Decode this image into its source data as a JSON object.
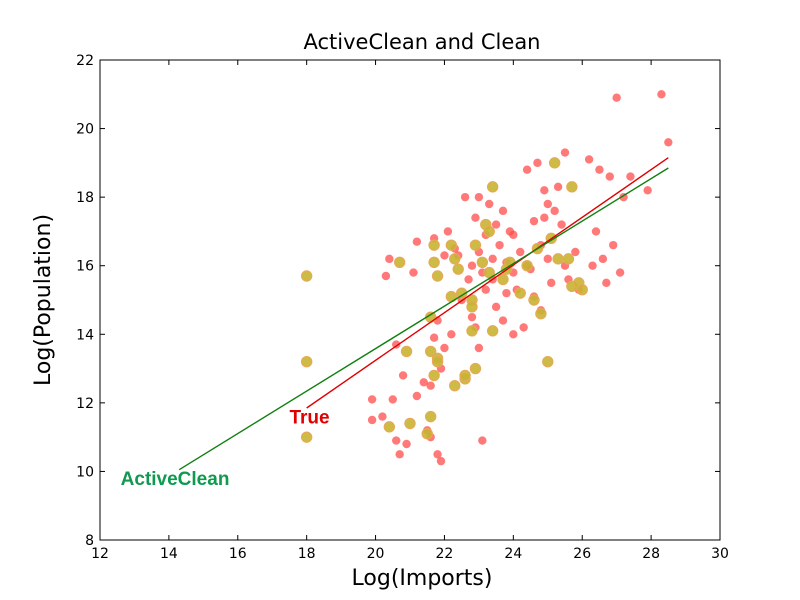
{
  "chart_data": {
    "type": "scatter",
    "title": "ActiveClean and Clean",
    "xlabel": "Log(Imports)",
    "ylabel": "Log(Population)",
    "xlim": [
      12,
      30
    ],
    "ylim": [
      8,
      22
    ],
    "xticks": [
      "12",
      "14",
      "16",
      "18",
      "20",
      "22",
      "24",
      "26",
      "28",
      "30"
    ],
    "yticks": [
      "8",
      "10",
      "12",
      "14",
      "16",
      "18",
      "20",
      "22"
    ],
    "grid": false,
    "colors": {
      "points_red": "#ff4c4c",
      "points_olive": "#c8b432",
      "line_true": "#e00000",
      "line_activeclean": "#108010",
      "label_true": "#e00000",
      "label_activeclean": "#109a50"
    },
    "series": [
      {
        "kind": "points-red",
        "points": [
          [
            19.9,
            12.1
          ],
          [
            19.9,
            11.5
          ],
          [
            20.2,
            11.6
          ],
          [
            20.3,
            15.7
          ],
          [
            20.4,
            16.2
          ],
          [
            20.5,
            12.1
          ],
          [
            20.6,
            13.7
          ],
          [
            20.6,
            10.9
          ],
          [
            20.7,
            10.5
          ],
          [
            20.8,
            12.8
          ],
          [
            20.9,
            10.8
          ],
          [
            21.1,
            15.8
          ],
          [
            21.2,
            16.7
          ],
          [
            21.2,
            12.2
          ],
          [
            21.4,
            12.6
          ],
          [
            21.5,
            11.2
          ],
          [
            21.6,
            11.0
          ],
          [
            21.6,
            12.5
          ],
          [
            21.7,
            16.8
          ],
          [
            21.7,
            13.9
          ],
          [
            21.8,
            14.4
          ],
          [
            21.8,
            10.5
          ],
          [
            21.9,
            10.3
          ],
          [
            21.9,
            13.0
          ],
          [
            22.0,
            16.3
          ],
          [
            22.0,
            13.6
          ],
          [
            22.1,
            17.0
          ],
          [
            22.2,
            14.0
          ],
          [
            22.3,
            16.5
          ],
          [
            22.4,
            16.3
          ],
          [
            22.5,
            15.0
          ],
          [
            22.6,
            18.0
          ],
          [
            22.7,
            15.6
          ],
          [
            22.8,
            16.0
          ],
          [
            22.8,
            14.5
          ],
          [
            22.9,
            17.4
          ],
          [
            22.9,
            14.2
          ],
          [
            23.0,
            18.0
          ],
          [
            23.0,
            16.4
          ],
          [
            23.0,
            13.6
          ],
          [
            23.1,
            15.8
          ],
          [
            23.1,
            10.9
          ],
          [
            23.2,
            16.9
          ],
          [
            23.2,
            15.3
          ],
          [
            23.3,
            17.8
          ],
          [
            23.4,
            16.2
          ],
          [
            23.4,
            15.6
          ],
          [
            23.5,
            17.2
          ],
          [
            23.5,
            14.8
          ],
          [
            23.6,
            16.6
          ],
          [
            23.7,
            17.6
          ],
          [
            23.7,
            14.4
          ],
          [
            23.8,
            16.1
          ],
          [
            23.8,
            15.2
          ],
          [
            23.9,
            17.0
          ],
          [
            24.0,
            16.9
          ],
          [
            24.0,
            15.8
          ],
          [
            24.0,
            14.0
          ],
          [
            24.1,
            15.3
          ],
          [
            24.2,
            16.4
          ],
          [
            24.3,
            14.2
          ],
          [
            24.4,
            18.8
          ],
          [
            24.4,
            16.0
          ],
          [
            24.5,
            15.9
          ],
          [
            24.6,
            17.3
          ],
          [
            24.6,
            15.1
          ],
          [
            24.7,
            19.0
          ],
          [
            24.8,
            16.6
          ],
          [
            24.8,
            14.7
          ],
          [
            24.9,
            18.2
          ],
          [
            24.9,
            17.4
          ],
          [
            25.0,
            17.8
          ],
          [
            25.0,
            16.2
          ],
          [
            25.1,
            15.5
          ],
          [
            25.2,
            17.6
          ],
          [
            25.3,
            18.3
          ],
          [
            25.4,
            17.2
          ],
          [
            25.5,
            19.3
          ],
          [
            25.5,
            16.0
          ],
          [
            25.6,
            15.6
          ],
          [
            25.8,
            16.4
          ],
          [
            25.9,
            15.3
          ],
          [
            26.2,
            19.1
          ],
          [
            26.3,
            16.0
          ],
          [
            26.4,
            17.0
          ],
          [
            26.5,
            18.8
          ],
          [
            26.6,
            16.2
          ],
          [
            26.7,
            15.5
          ],
          [
            26.8,
            18.6
          ],
          [
            26.9,
            16.6
          ],
          [
            27.0,
            20.9
          ],
          [
            27.1,
            15.8
          ],
          [
            27.2,
            18.0
          ],
          [
            27.4,
            18.6
          ],
          [
            27.9,
            18.2
          ],
          [
            28.3,
            21.0
          ],
          [
            28.5,
            19.6
          ]
        ]
      },
      {
        "kind": "points-olive",
        "points": [
          [
            18.0,
            15.7
          ],
          [
            18.0,
            13.2
          ],
          [
            18.0,
            11.0
          ],
          [
            20.4,
            11.3
          ],
          [
            20.7,
            16.1
          ],
          [
            20.9,
            13.5
          ],
          [
            21.0,
            11.4
          ],
          [
            21.5,
            11.1
          ],
          [
            21.6,
            14.5
          ],
          [
            21.6,
            13.5
          ],
          [
            21.6,
            11.6
          ],
          [
            21.7,
            16.6
          ],
          [
            21.7,
            16.1
          ],
          [
            21.7,
            12.8
          ],
          [
            21.8,
            15.7
          ],
          [
            21.8,
            13.3
          ],
          [
            21.8,
            13.2
          ],
          [
            22.2,
            16.6
          ],
          [
            22.2,
            15.1
          ],
          [
            22.3,
            16.2
          ],
          [
            22.3,
            12.5
          ],
          [
            22.4,
            15.9
          ],
          [
            22.5,
            15.2
          ],
          [
            22.6,
            12.7
          ],
          [
            22.6,
            12.8
          ],
          [
            22.8,
            15.0
          ],
          [
            22.8,
            14.8
          ],
          [
            22.8,
            14.1
          ],
          [
            22.9,
            16.6
          ],
          [
            22.9,
            13.0
          ],
          [
            23.1,
            16.1
          ],
          [
            23.2,
            17.2
          ],
          [
            23.3,
            17.0
          ],
          [
            23.3,
            15.8
          ],
          [
            23.4,
            18.3
          ],
          [
            23.4,
            14.1
          ],
          [
            23.7,
            15.6
          ],
          [
            23.8,
            15.9
          ],
          [
            23.9,
            16.1
          ],
          [
            24.2,
            15.2
          ],
          [
            24.4,
            16.0
          ],
          [
            24.6,
            15.0
          ],
          [
            24.7,
            16.5
          ],
          [
            24.8,
            14.6
          ],
          [
            25.0,
            13.2
          ],
          [
            25.1,
            16.8
          ],
          [
            25.2,
            19.0
          ],
          [
            25.3,
            16.2
          ],
          [
            25.6,
            16.2
          ],
          [
            25.7,
            18.3
          ],
          [
            25.7,
            15.4
          ],
          [
            25.9,
            15.5
          ],
          [
            26.0,
            15.3
          ]
        ]
      }
    ],
    "lines": [
      {
        "name": "True",
        "kind": "line-true",
        "x": [
          18.0,
          28.5
        ],
        "y": [
          11.85,
          19.15
        ]
      },
      {
        "name": "ActiveClean",
        "kind": "line-activeclean",
        "x": [
          14.3,
          28.5
        ],
        "y": [
          10.05,
          18.85
        ]
      }
    ],
    "annotations": [
      {
        "text": "True",
        "x": 17.5,
        "y": 11.4,
        "kind": "label-true"
      },
      {
        "text": "ActiveClean",
        "x": 12.6,
        "y": 9.6,
        "kind": "label-activeclean"
      }
    ]
  }
}
